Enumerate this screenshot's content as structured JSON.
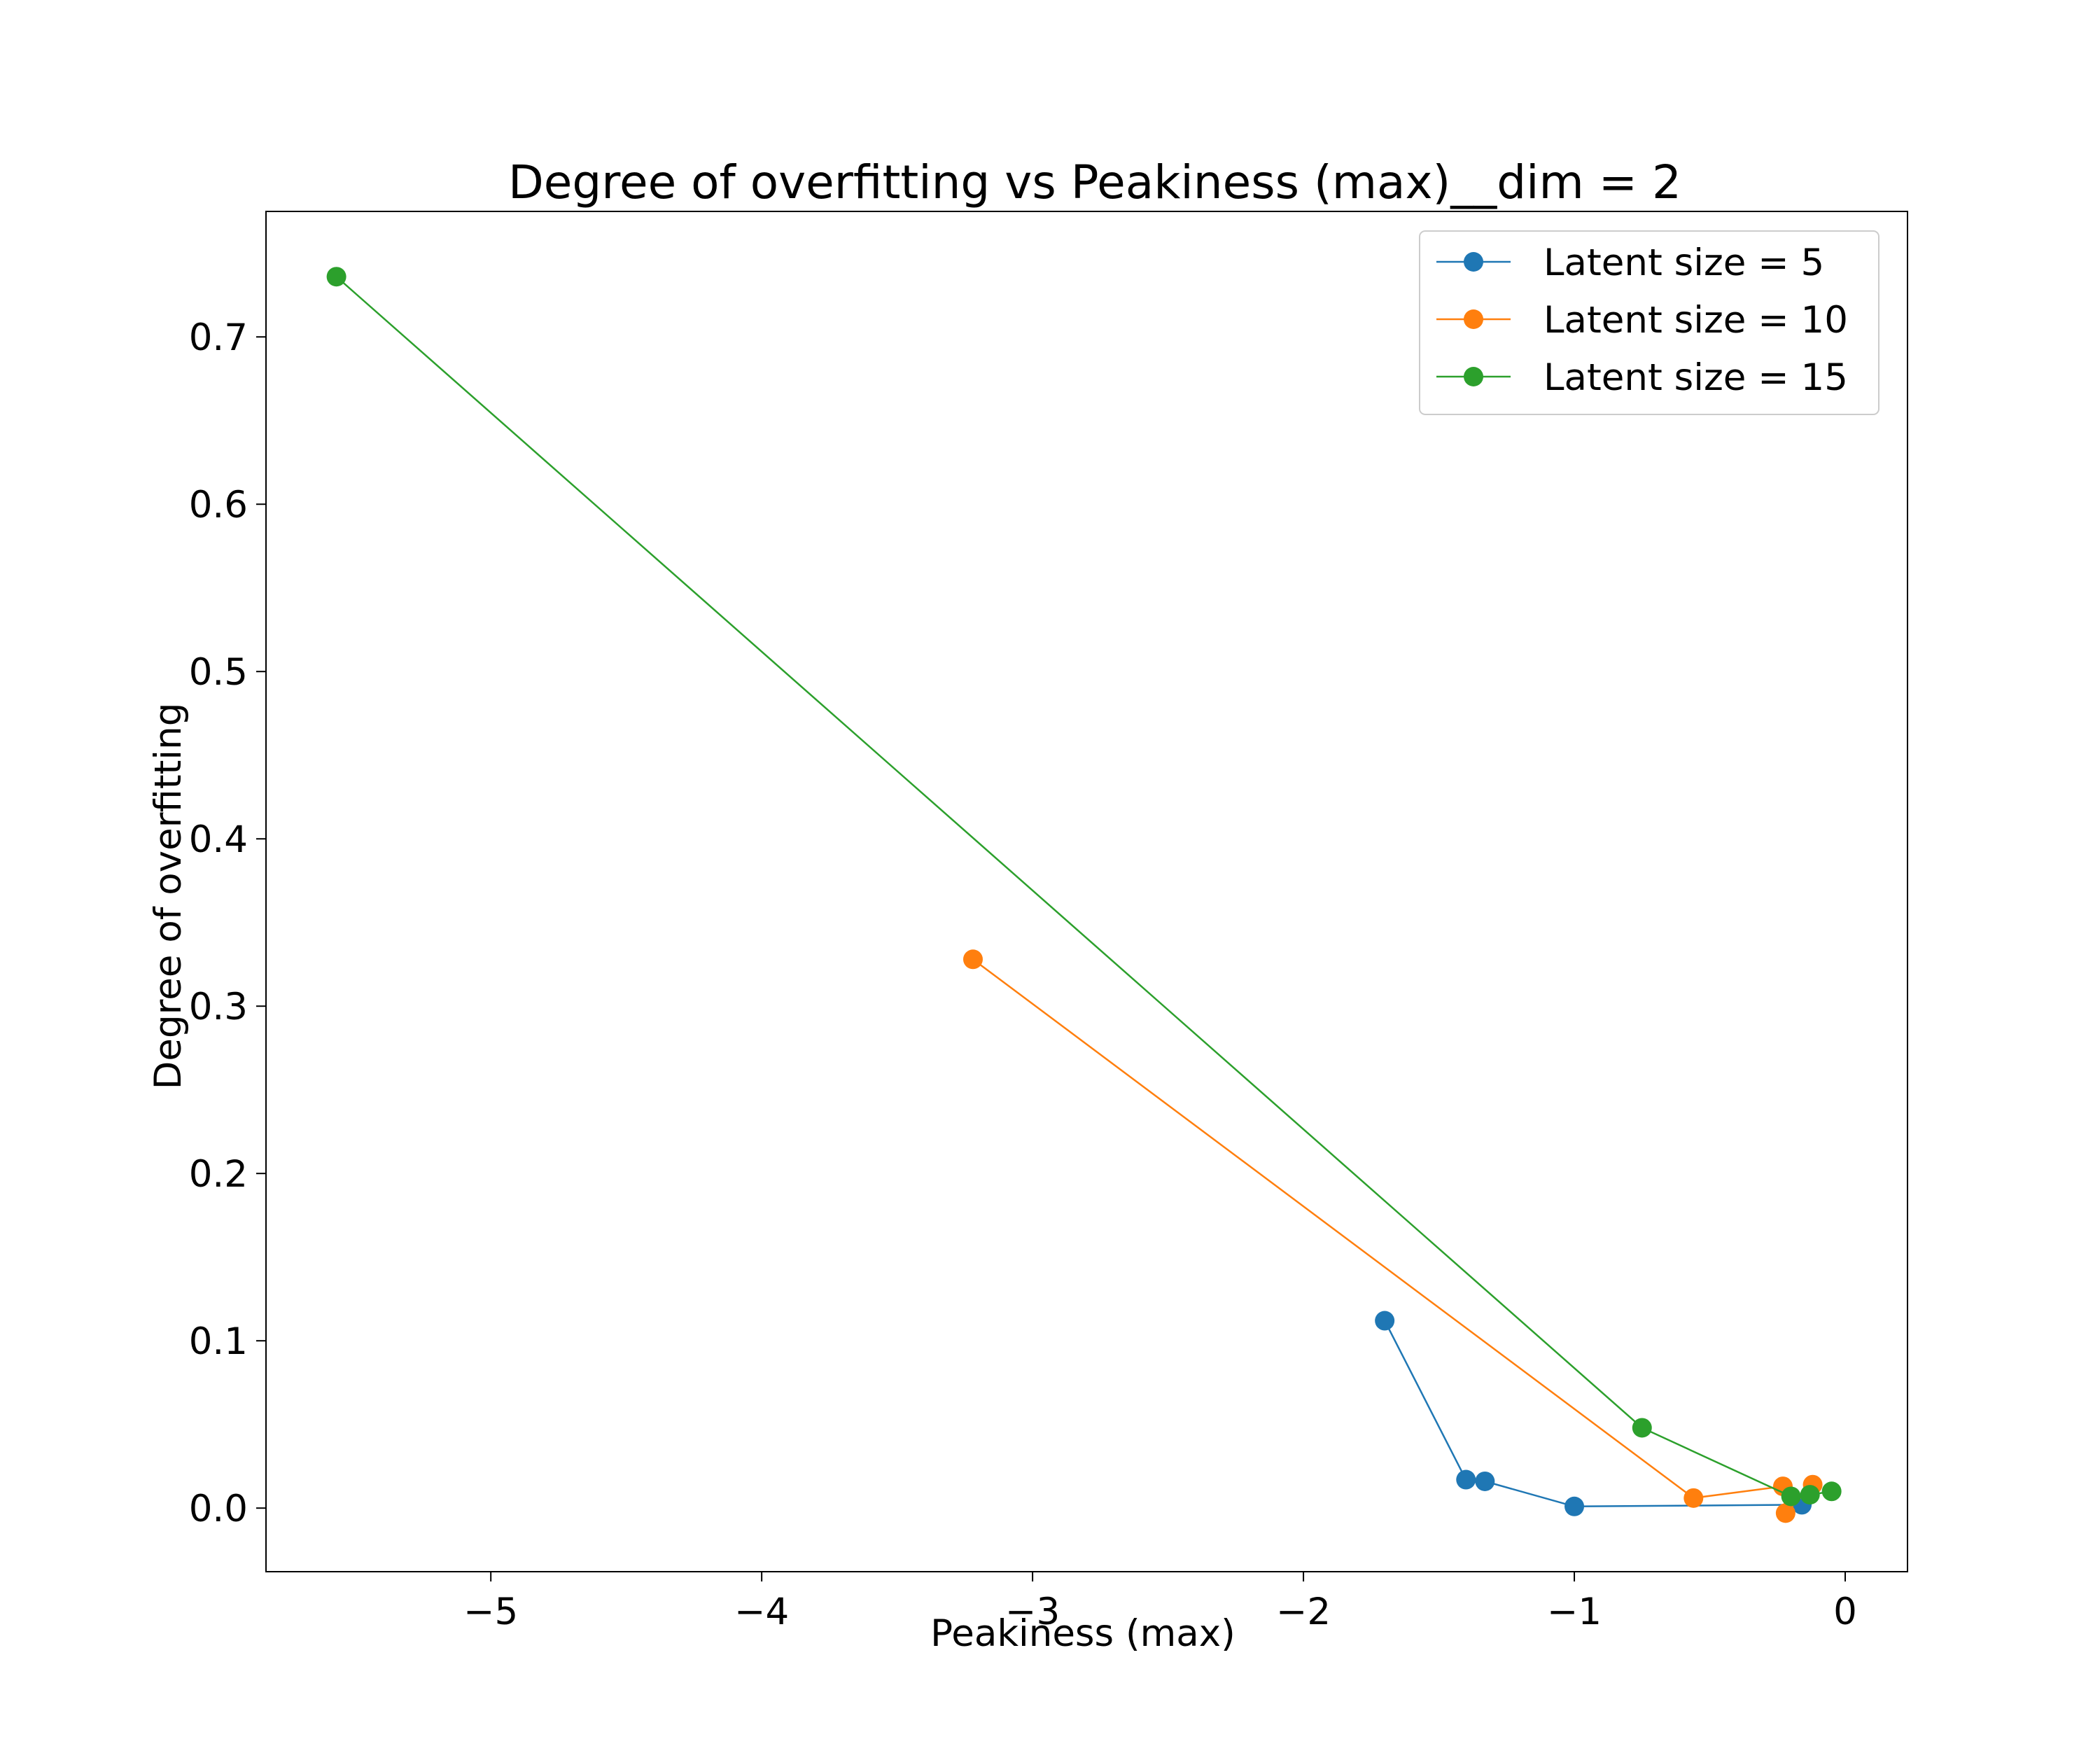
{
  "chart_data": {
    "type": "line",
    "title": "Degree of overfitting vs Peakiness (max)__dim = 2",
    "xlabel": "Peakiness (max)",
    "ylabel": "Degree of overfitting",
    "xlim": [
      -5.83,
      0.23
    ],
    "ylim": [
      -0.038,
      0.775
    ],
    "xticks": [
      -5,
      -4,
      -3,
      -2,
      -1,
      0
    ],
    "xtick_labels": [
      "−5",
      "−4",
      "−3",
      "−2",
      "−1",
      "0"
    ],
    "yticks": [
      0.0,
      0.1,
      0.2,
      0.3,
      0.4,
      0.5,
      0.6,
      0.7
    ],
    "ytick_labels": [
      "0.0",
      "0.1",
      "0.2",
      "0.3",
      "0.4",
      "0.5",
      "0.6",
      "0.7"
    ],
    "grid": false,
    "legend_position": "top-right",
    "series": [
      {
        "name": "Latent size = 5",
        "color": "#1f77b4",
        "points": [
          [
            -1.7,
            0.112
          ],
          [
            -1.4,
            0.017
          ],
          [
            -1.33,
            0.016
          ],
          [
            -1.0,
            0.001
          ],
          [
            -0.16,
            0.002
          ]
        ]
      },
      {
        "name": "Latent size = 10",
        "color": "#ff7f0e",
        "points": [
          [
            -3.22,
            0.328
          ],
          [
            -0.56,
            0.006
          ],
          [
            -0.23,
            0.013
          ],
          [
            -0.22,
            -0.003
          ],
          [
            -0.12,
            0.014
          ]
        ]
      },
      {
        "name": "Latent size = 15",
        "color": "#2ca02c",
        "points": [
          [
            -5.57,
            0.736
          ],
          [
            -0.75,
            0.048
          ],
          [
            -0.2,
            0.007
          ],
          [
            -0.13,
            0.008
          ],
          [
            -0.05,
            0.01
          ]
        ]
      }
    ]
  }
}
